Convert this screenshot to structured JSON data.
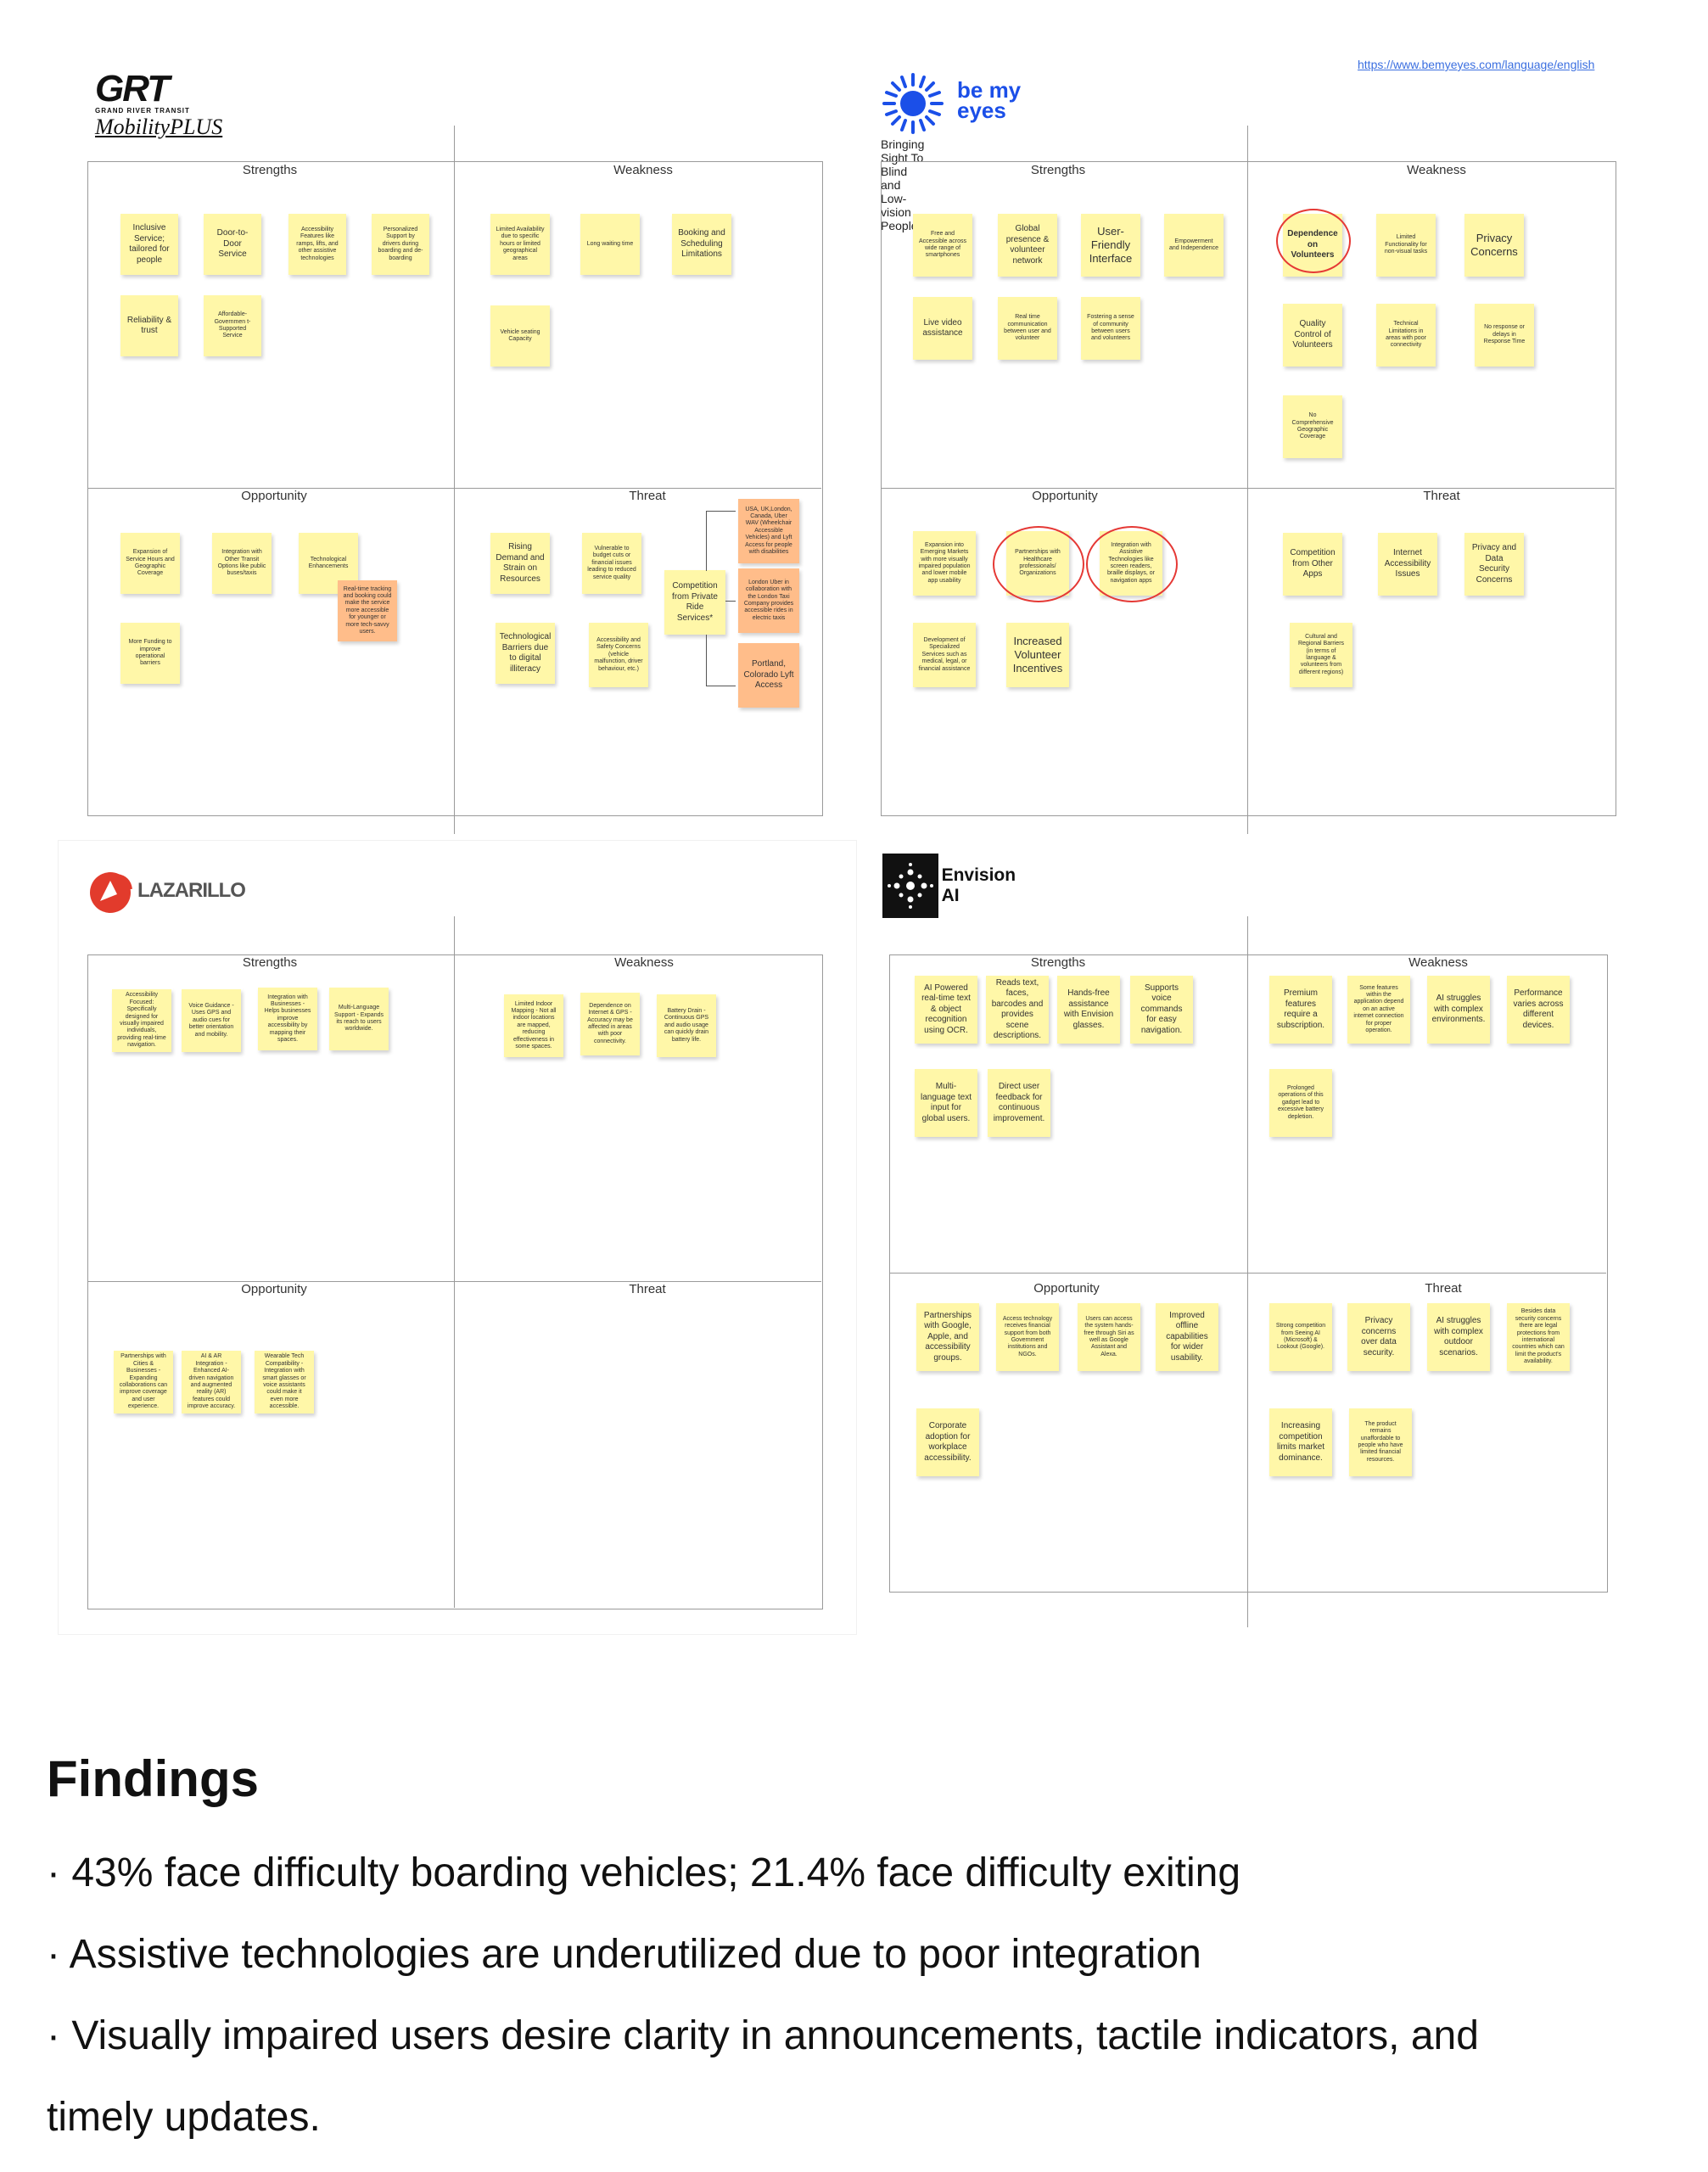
{
  "grt": {
    "logo_main": "GRT",
    "logo_sub": "GRAND RIVER TRANSIT",
    "logo_mobility": "MobilityPLUS",
    "labels": {
      "strengths": "Strengths",
      "weakness": "Weakness",
      "opportunity": "Opportunity",
      "threat": "Threat"
    },
    "strengths": [
      "Inclusive Service; tailored for people",
      "Door-to-Door Service",
      "Accessibility Features like ramps, lifts, and other assistive technologies",
      "Personalized Support by drivers during boarding and de-boarding",
      "Reliability & trust",
      "Affordable-Governmen t-Supported Service"
    ],
    "weakness": [
      "Limited Availability due to specific hours or limited geographical areas",
      "Long waiting time",
      "Booking and Scheduling Limitations",
      "Vehicle seating Capacity"
    ],
    "opportunity": [
      "Expansion of Service Hours and Geographic Coverage",
      "Integration with Other Transit Options like public buses/taxis",
      "Technological Enhancements",
      "Real-time tracking and booking could make the service more accessible for younger or more tech-savvy users.",
      "More Funding to improve operational barriers"
    ],
    "threat": [
      "Rising Demand and Strain on Resources",
      "Vulnerable to budget cuts or financial issues leading to reduced service quality",
      "Competition from Private Ride Services*",
      "USA, UK,London, Canada, Uber WAV (Wheelchair Accessible Vehicles) and Lyft Access for people with disabilities",
      "London Uber in collaboration with the London Taxi Company provides accessible rides in electric taxis",
      "Portland, Colorado Lyft Access",
      "Technological Barriers due to digital illiteracy",
      "Accessibility and Safety Concerns (vehicle malfunction, driver behaviour, etc.)"
    ]
  },
  "bemyeyes": {
    "link": "https://www.bemyeyes.com/language/english",
    "logo_text": "be my eyes",
    "tagline": "Bringing Sight To Blind and Low-vision People",
    "labels": {
      "strengths": "Strengths",
      "weakness": "Weakness",
      "opportunity": "Opportunity",
      "threat": "Threat"
    },
    "strengths": [
      "Free and Accessible across wide range of smartphones",
      "Global presence & volunteer network",
      "User-Friendly Interface",
      "Empowerment and Independence",
      "Live video assistance",
      "Real time communication between user and volunteer",
      "Fostering a sense of community between users and volunteers"
    ],
    "weakness": [
      "Dependence on Volunteers",
      "Limited Functionality for non-visual tasks",
      "Privacy Concerns",
      "Quality Control of Volunteers",
      "Technical Limitations in areas with poor connectivity",
      "No response or delays in Response Time",
      "No Comprehensive Geographic Coverage"
    ],
    "opportunity": [
      "Expansion into Emerging Markets with more visually impaired population and lower mobile app usability",
      "Partnerships with Healthcare professionals/ Organizations",
      "Integration with Assistive Technologies like screen readers, braille displays, or navigation apps",
      "Development of Specialized Services such as medical, legal, or financial assistance",
      "Increased Volunteer Incentives"
    ],
    "threat": [
      "Competition from Other Apps",
      "Internet Accessibility Issues",
      "Privacy and Data Security Concerns",
      "Cultural and Regional Barriers (in terms of language & volunteers from different regions)"
    ]
  },
  "lazarillo": {
    "logo_text": "LAZARILLO",
    "labels": {
      "strengths": "Strengths",
      "weakness": "Weakness",
      "opportunity": "Opportunity",
      "threat": "Threat"
    },
    "strengths": [
      "Accessibility Focused: Specifically designed for visually impaired individuals, providing real-time navigation.",
      "Voice Guidance - Uses GPS and audio cues for better orientation and mobility.",
      "Integration with Businesses - Helps businesses improve accessibility by mapping their spaces.",
      "Multi-Language Support - Expands its reach to users worldwide."
    ],
    "weakness": [
      "Limited Indoor Mapping - Not all indoor locations are mapped, reducing effectiveness in some spaces.",
      "Dependence on Internet & GPS - Accuracy may be affected in areas with poor connectivity.",
      "Battery Drain - Continuous GPS and audio usage can quickly drain battery life."
    ],
    "opportunity": [
      "Partnerships with Cities & Businesses - Expanding collaborations can improve coverage and user experience.",
      "AI & AR Integration - Enhanced AI-driven navigation and augmented reality (AR) features could improve accuracy.",
      "Wearable Tech Compatibility - Integration with smart glasses or voice assistants could make it even more accessible."
    ]
  },
  "envision": {
    "logo_text": "Envision AI",
    "labels": {
      "strengths": "Strengths",
      "weakness": "Weakness",
      "opportunity": "Opportunity",
      "threat": "Threat"
    },
    "strengths": [
      "AI Powered real-time text & object recognition using OCR.",
      "Reads text, faces, barcodes and provides scene descriptions.",
      "Hands-free assistance with Envision glasses.",
      "Supports voice commands for easy navigation.",
      "Multi-language text input for global users.",
      "Direct user feedback for continuous improvement."
    ],
    "weakness": [
      "Premium features require a subscription.",
      "Some features within the application depend on an active internet connection for proper operation.",
      "AI struggles with complex environments.",
      "Performance varies across different devices.",
      "Prolonged operations of this gadget lead to excessive battery depletion."
    ],
    "opportunity": [
      "Partnerships with Google, Apple, and accessibility groups.",
      "Access technology receives financial support from both Government institutions and NGOs.",
      "Users can access the system hands-free through Siri as well as Google Assistant and Alexa.",
      "Improved offline capabilities for wider usability.",
      "Corporate adoption for workplace accessibility."
    ],
    "threat": [
      "Strong competition from Seeing AI (Microsoft) & Lookout (Google).",
      "Privacy concerns over data security.",
      "AI struggles with complex outdoor scenarios.",
      "Besides data security concerns there are legal protections from international countries which can limit the product's availability.",
      "Increasing competition limits market dominance.",
      "The product remains unaffordable to people who have limited financial resources."
    ]
  },
  "findings": {
    "title": "Findings",
    "items": [
      "43% face difficulty boarding vehicles; 21.4% face difficulty exiting",
      "Assistive technologies are underutilized due to poor integration",
      "Visually impaired users desire clarity in announcements, tactile indicators, and",
      "timely updates."
    ]
  }
}
